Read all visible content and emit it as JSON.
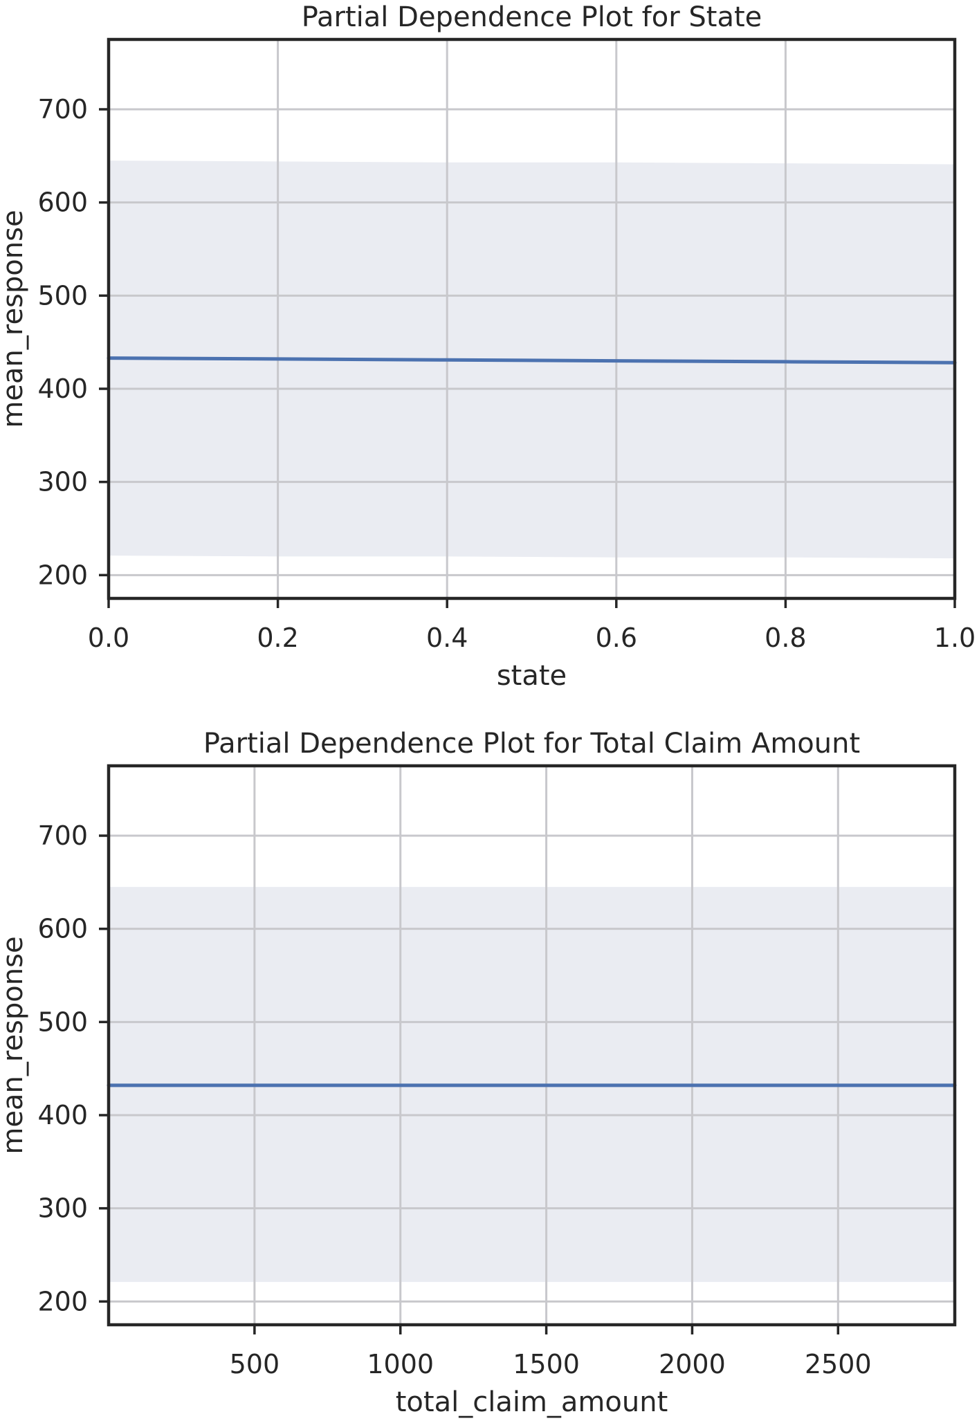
{
  "chart_data": [
    {
      "type": "line",
      "title": "Partial Dependence Plot for State",
      "xlabel": "state",
      "ylabel": "mean_response",
      "xlim": [
        0.0,
        1.0
      ],
      "ylim": [
        175,
        775
      ],
      "xticks": [
        0.0,
        0.2,
        0.4,
        0.6,
        0.8,
        1.0
      ],
      "xtick_labels": [
        "0.0",
        "0.2",
        "0.4",
        "0.6",
        "0.8",
        "1.0"
      ],
      "yticks": [
        200,
        300,
        400,
        500,
        600,
        700
      ],
      "ytick_labels": [
        "200",
        "300",
        "400",
        "500",
        "600",
        "700"
      ],
      "grid": true,
      "legend": "none",
      "series": [
        {
          "x": [
            0.0,
            0.2,
            0.4,
            0.6,
            0.8,
            1.0
          ],
          "y": [
            433,
            432,
            431,
            430,
            429,
            428
          ],
          "band_upper": [
            645,
            644,
            643,
            643,
            642,
            641
          ],
          "band_lower": [
            221,
            220,
            220,
            219,
            219,
            218
          ]
        }
      ]
    },
    {
      "type": "line",
      "title": "Partial Dependence Plot for Total Claim Amount",
      "xlabel": "total_claim_amount",
      "ylabel": "mean_response",
      "xlim": [
        0,
        2900
      ],
      "ylim": [
        175,
        775
      ],
      "xticks": [
        500,
        1000,
        1500,
        2000,
        2500
      ],
      "xtick_labels": [
        "500",
        "1000",
        "1500",
        "2000",
        "2500"
      ],
      "yticks": [
        200,
        300,
        400,
        500,
        600,
        700
      ],
      "ytick_labels": [
        "200",
        "300",
        "400",
        "500",
        "600",
        "700"
      ],
      "grid": true,
      "legend": "none",
      "series": [
        {
          "x": [
            0,
            500,
            1000,
            1500,
            2000,
            2500,
            2900
          ],
          "y": [
            432,
            432,
            432,
            432,
            432,
            432,
            432
          ],
          "band_upper": [
            645,
            645,
            645,
            645,
            645,
            645,
            645
          ],
          "band_lower": [
            221,
            221,
            221,
            221,
            221,
            221,
            221
          ]
        }
      ]
    }
  ],
  "colors": {
    "line": "#4c72b0",
    "band": "#eaecf2",
    "grid": "#c8c8cc",
    "frame": "#262626",
    "text": "#262626"
  }
}
